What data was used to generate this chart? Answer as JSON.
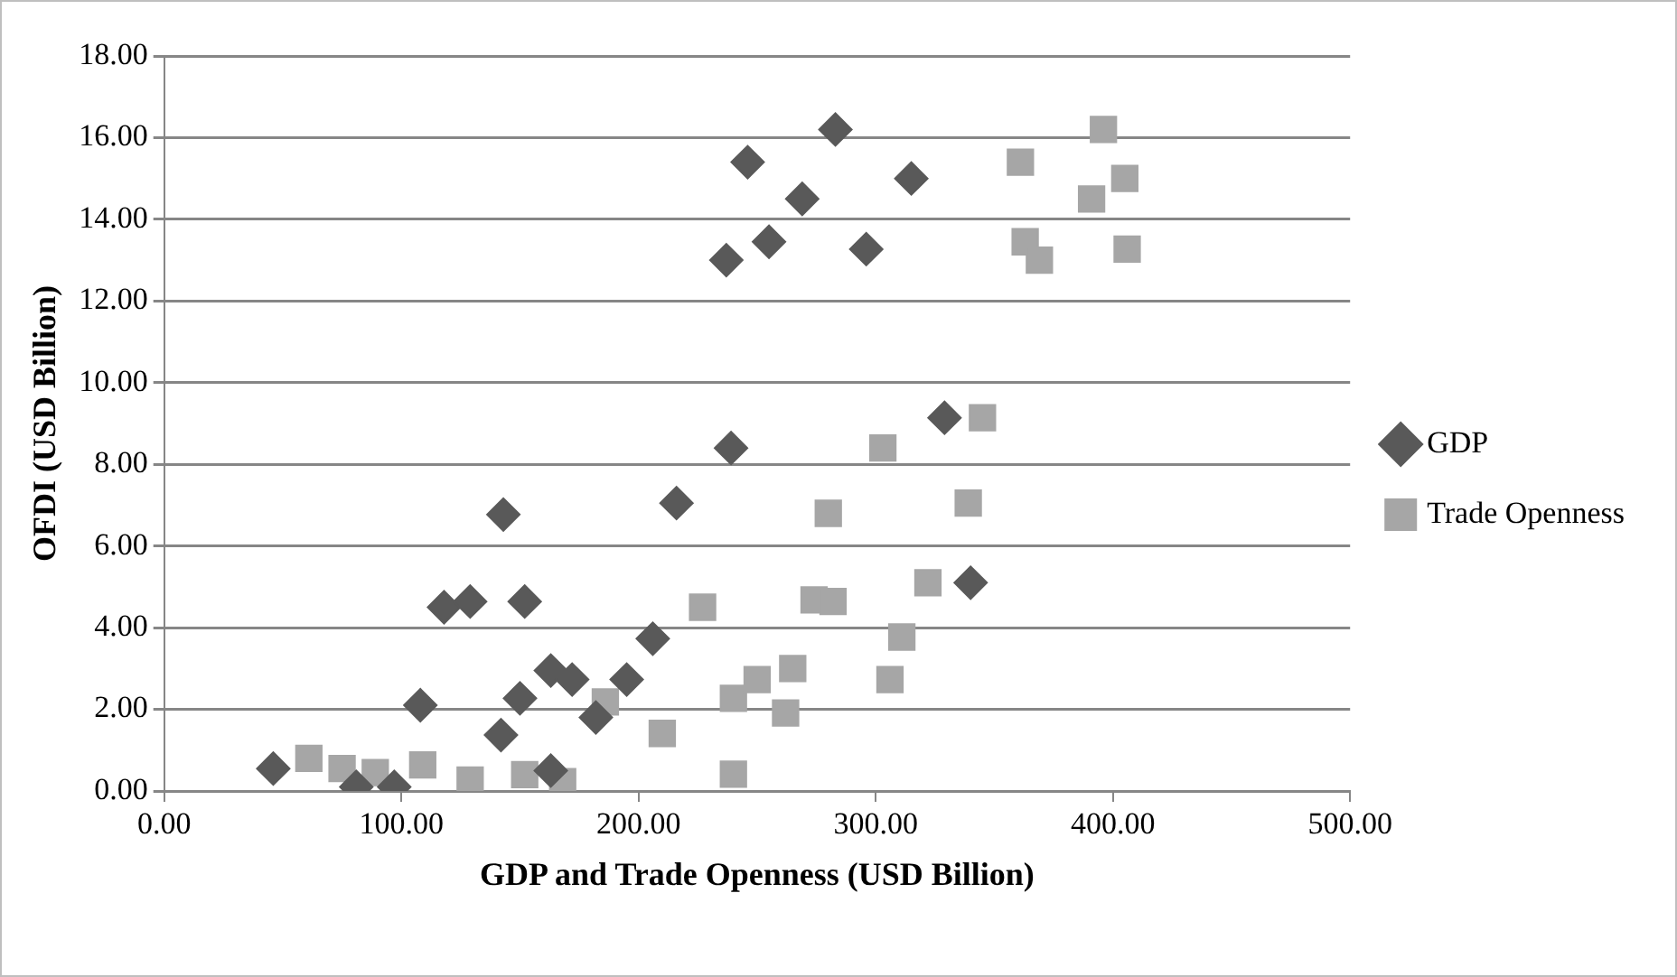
{
  "chart_data": {
    "type": "scatter",
    "xlabel": "GDP and Trade Openness (USD Billion)",
    "ylabel": "OFDI (USD Billion)",
    "xlim": [
      0,
      500
    ],
    "xticks": [
      {
        "value": 0,
        "label": "0.00"
      },
      {
        "value": 100,
        "label": "100.00"
      },
      {
        "value": 200,
        "label": "200.00"
      },
      {
        "value": 300,
        "label": "300.00"
      },
      {
        "value": 400,
        "label": "400.00"
      },
      {
        "value": 500,
        "label": "500.00"
      }
    ],
    "ylim": [
      0,
      18
    ],
    "yticks": [
      {
        "value": 0,
        "label": "0.00"
      },
      {
        "value": 2,
        "label": "2.00"
      },
      {
        "value": 4,
        "label": "4.00"
      },
      {
        "value": 6,
        "label": "6.00"
      },
      {
        "value": 8,
        "label": "8.00"
      },
      {
        "value": 10,
        "label": "10.00"
      },
      {
        "value": 12,
        "label": "12.00"
      },
      {
        "value": 14,
        "label": "14.00"
      },
      {
        "value": 16,
        "label": "16.00"
      },
      {
        "value": 18,
        "label": "18.00"
      }
    ],
    "grid": "y",
    "legend": "right",
    "series": [
      {
        "name": "GDP",
        "color": "#595959",
        "marker": "diamond",
        "x": [
          46,
          81,
          97,
          108,
          118,
          129,
          143,
          142,
          150,
          152,
          163,
          163,
          172,
          182,
          195,
          206,
          216,
          239,
          237,
          246,
          255,
          269,
          283,
          296,
          315,
          329,
          340
        ],
        "values": [
          0.55,
          0.1,
          0.1,
          2.1,
          4.5,
          4.64,
          6.77,
          1.37,
          2.27,
          4.64,
          2.95,
          0.5,
          2.73,
          1.8,
          2.73,
          3.73,
          7.05,
          8.4,
          13.0,
          15.4,
          13.45,
          14.5,
          16.2,
          13.27,
          15.0,
          9.14,
          5.1
        ]
      },
      {
        "name": "Trade Openness",
        "color": "#a6a6a6",
        "marker": "square",
        "x": [
          61,
          75,
          89,
          109,
          129,
          152,
          168,
          186,
          210,
          227,
          240,
          240,
          250,
          262,
          265,
          274,
          282,
          280,
          303,
          306,
          311,
          322,
          339,
          345,
          361,
          363,
          369,
          391,
          396,
          405,
          406
        ],
        "values": [
          0.8,
          0.55,
          0.45,
          0.64,
          0.27,
          0.4,
          0.23,
          2.18,
          1.41,
          4.5,
          2.27,
          0.41,
          2.73,
          1.91,
          3.0,
          4.68,
          4.64,
          6.8,
          8.4,
          2.73,
          3.77,
          5.1,
          7.05,
          9.14,
          15.4,
          13.45,
          13.0,
          14.5,
          16.2,
          15.0,
          13.27
        ]
      }
    ]
  }
}
